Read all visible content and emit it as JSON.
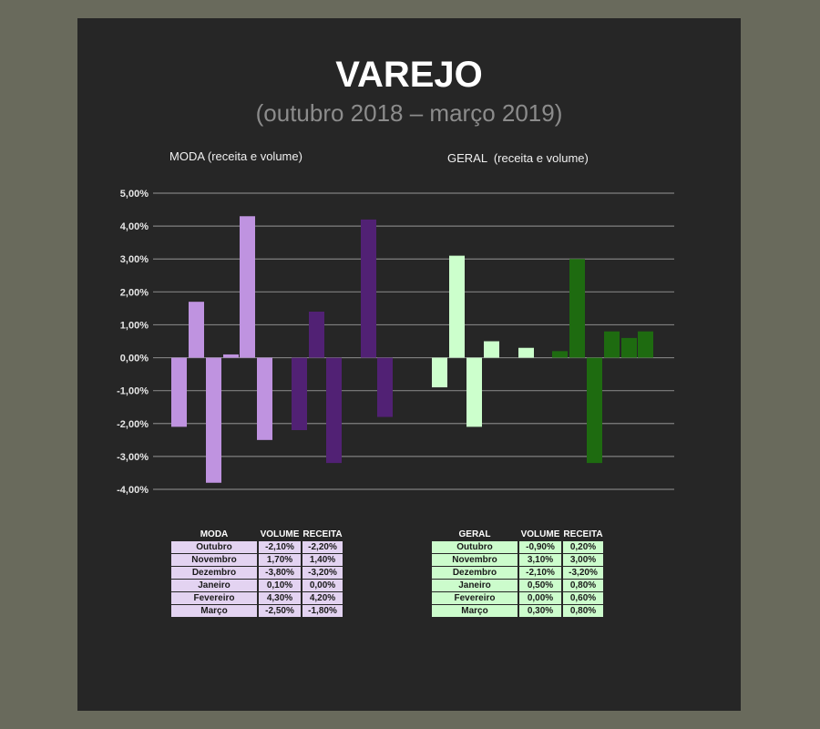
{
  "header": {
    "title": "VAREJO",
    "subtitle": "(outubro 2018 – março 2019)"
  },
  "sections": {
    "moda_label": "MODA (receita e volume)",
    "geral_label": "GERAL  (receita e volume)"
  },
  "chart_data": {
    "type": "bar",
    "ylim": [
      -4,
      5
    ],
    "yticks": [
      "5,00%",
      "4,00%",
      "3,00%",
      "2,00%",
      "1,00%",
      "0,00%",
      "-1,00%",
      "-2,00%",
      "-3,00%",
      "-4,00%"
    ],
    "grid": true,
    "groups": [
      {
        "name": "MODA",
        "categories": [
          "Outubro",
          "Novembro",
          "Dezembro",
          "Janeiro",
          "Fevereiro",
          "Março"
        ],
        "series": [
          {
            "name": "VOLUME",
            "color": "#bf93e0",
            "values": [
              -2.1,
              1.7,
              -3.8,
              0.1,
              4.3,
              -2.5
            ]
          },
          {
            "name": "RECEITA",
            "color": "#512174",
            "values": [
              -2.2,
              1.4,
              -3.2,
              0.0,
              4.2,
              -1.8
            ]
          }
        ]
      },
      {
        "name": "GERAL",
        "categories": [
          "Outubro",
          "Novembro",
          "Dezembro",
          "Janeiro",
          "Fevereiro",
          "Março"
        ],
        "series": [
          {
            "name": "VOLUME",
            "color": "#ccffcc",
            "values": [
              -0.9,
              3.1,
              -2.1,
              0.5,
              0.0,
              0.3
            ]
          },
          {
            "name": "RECEITA",
            "color": "#1e6b10",
            "values": [
              0.2,
              3.0,
              -3.2,
              0.8,
              0.6,
              0.8
            ]
          }
        ]
      }
    ]
  },
  "tables": {
    "moda": {
      "headers": [
        "MODA",
        "VOLUME",
        "RECEITA"
      ],
      "rows": [
        [
          "Outubro",
          "-2,10%",
          "-2,20%"
        ],
        [
          "Novembro",
          "1,70%",
          "1,40%"
        ],
        [
          "Dezembro",
          "-3,80%",
          "-3,20%"
        ],
        [
          "Janeiro",
          "0,10%",
          "0,00%"
        ],
        [
          "Fevereiro",
          "4,30%",
          "4,20%"
        ],
        [
          "Março",
          "-2,50%",
          "-1,80%"
        ]
      ]
    },
    "geral": {
      "headers": [
        "GERAL",
        "VOLUME",
        "RECEITA"
      ],
      "rows": [
        [
          "Outubro",
          "-0,90%",
          "0,20%"
        ],
        [
          "Novembro",
          "3,10%",
          "3,00%"
        ],
        [
          "Dezembro",
          "-2,10%",
          "-3,20%"
        ],
        [
          "Janeiro",
          "0,50%",
          "0,80%"
        ],
        [
          "Fevereiro",
          "0,00%",
          "0,60%"
        ],
        [
          "Março",
          "0,30%",
          "0,80%"
        ]
      ]
    }
  }
}
